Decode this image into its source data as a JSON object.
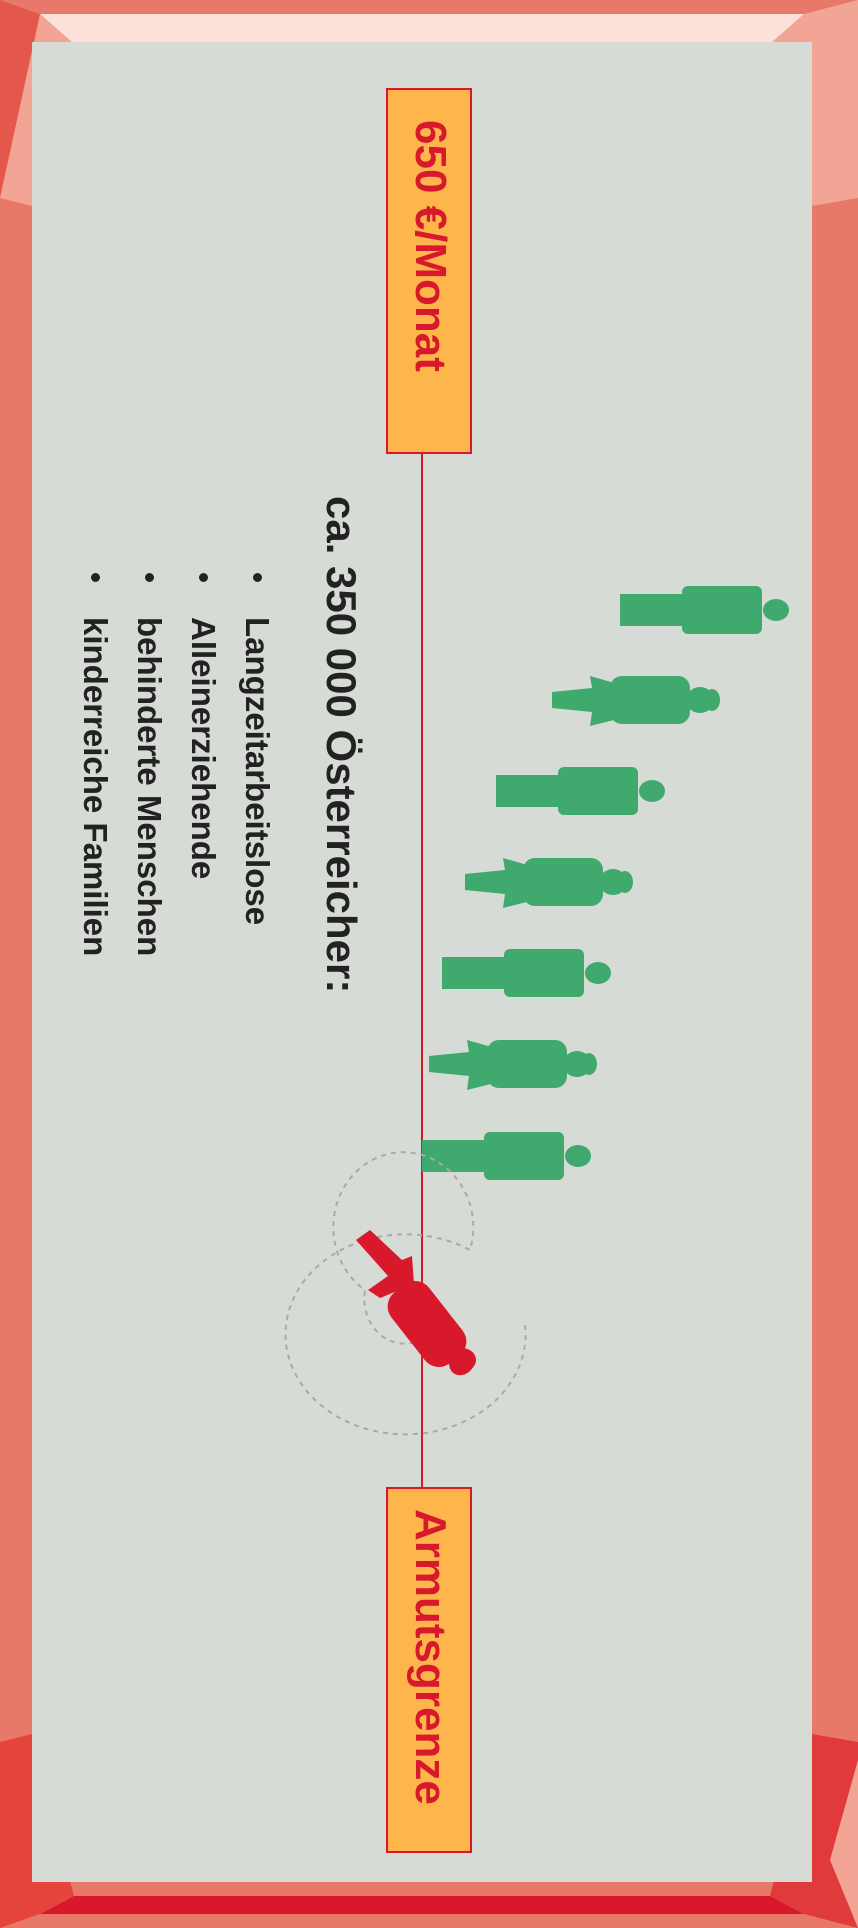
{
  "top_label": "650 €/Monat",
  "bottom_label": "Armutsgrenze",
  "heading": "ca. 350 000 Österreicher:",
  "groups": [
    "Langzeitarbeitslose",
    "Alleinerziehende",
    "behinderte Menschen",
    "kinderreiche Familien"
  ],
  "colors": {
    "accent_red": "#d8192c",
    "label_bg": "#fdb54c",
    "people_green": "#3fa96e",
    "panel_bg": "#d7dbd6",
    "frame_red": "#e8786a"
  },
  "icons": [
    "person-male-icon",
    "person-female-icon",
    "falling-person-icon"
  ]
}
